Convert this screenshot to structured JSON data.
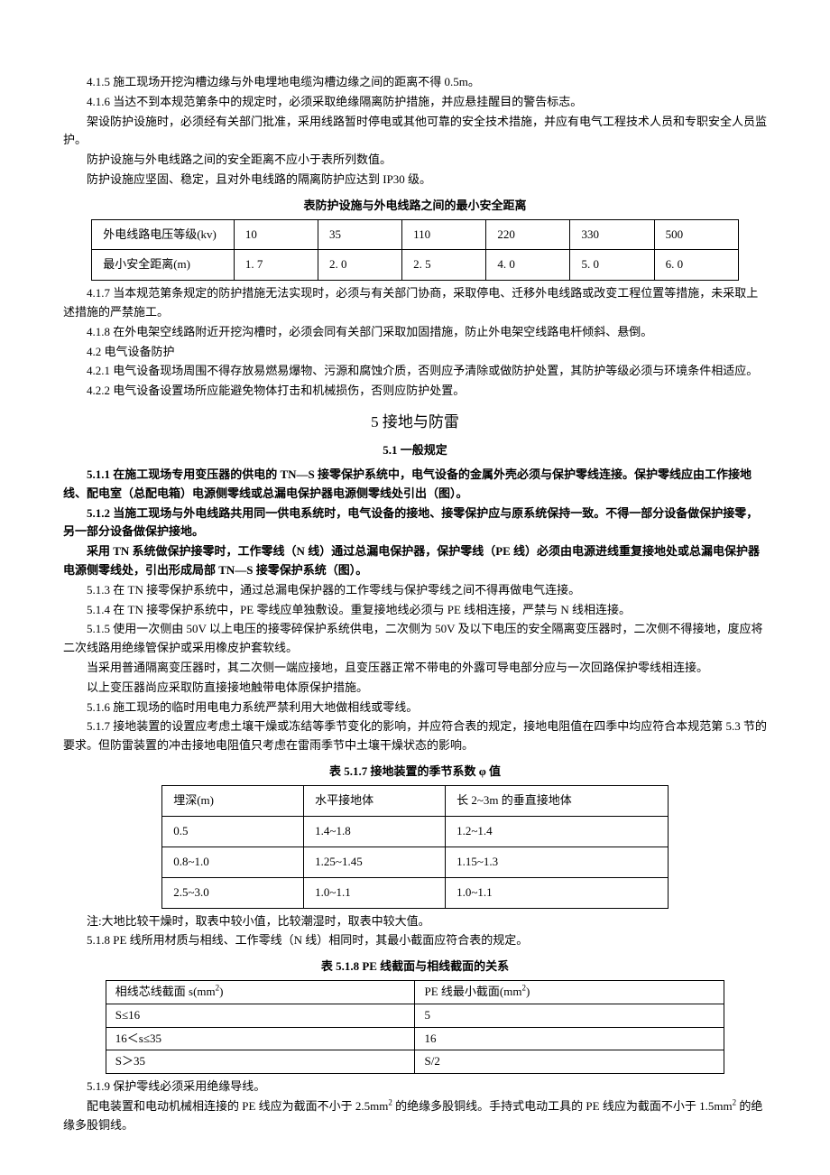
{
  "p1": "4.1.5  施工现场开挖沟槽边缘与外电埋地电缆沟槽边缘之间的距离不得 0.5m。",
  "p2": "4.1.6  当达不到本规范第条中的规定时，必须采取绝缘隔离防护措施，并应悬挂醒目的警告标志。",
  "p3": "架设防护设施时，必须经有关部门批准，采用线路暂时停电或其他可靠的安全技术措施，并应有电气工程技术人员和专职安全人员监护。",
  "p4": "防护设施与外电线路之间的安全距离不应小于表所列数值。",
  "p5": "防护设施应坚固、稳定，且对外电线路的隔离防护应达到 IP30 级。",
  "t1_title": "表防护设施与外电线路之间的最小安全距离",
  "t1": {
    "r1": [
      "外电线路电压等级(kv)",
      "10",
      "35",
      "110",
      "220",
      "330",
      "500"
    ],
    "r2": [
      "最小安全距离(m)",
      "1.  7",
      "2.  0",
      "2.  5",
      "4.  0",
      "5.  0",
      "6.  0"
    ]
  },
  "p6": "4.1.7  当本规范第条规定的防护措施无法实现时，必须与有关部门协商，采取停电、迁移外电线路或改变工程位置等措施，未采取上述措施的严禁施工。",
  "p7": "4.1.8  在外电架空线路附近开挖沟槽时，必须会同有关部门采取加固措施，防止外电架空线路电杆倾斜、悬倒。",
  "p8": "4.2  电气设备防护",
  "p9": "4.2.1  电气设备现场周围不得存放易燃易爆物、污源和腐蚀介质，否则应予清除或做防护处置，其防护等级必须与环境条件相适应。",
  "p10": "4.2.2  电气设备设置场所应能避免物体打击和机械损伤，否则应防护处置。",
  "sec5": "5  接地与防雷",
  "sec51": "5.1 一般规定",
  "p11": "5.1.1  在施工现场专用变压器的供电的 TN—S 接零保护系统中，电气设备的金属外壳必须与保护零线连接。保护零线应由工作接地线、配电室（总配电箱）电源侧零线或总漏电保护器电源侧零线处引出（图）。",
  "p12": "5.1.2  当施工现场与外电线路共用同一供电系统时，电气设备的接地、接零保护应与原系统保持一致。不得一部分设备做保护接零，另一部分设备做保护接地。",
  "p13": "采用 TN 系统做保护接零时，工作零线（N 线）通过总漏电保护器，保护零线（PE 线）必须由电源进线重复接地处或总漏电保护器电源侧零线处，引出形成局部 TN—S 接零保护系统（图）。",
  "p14": "5.1.3  在 TN 接零保护系统中，通过总漏电保护器的工作零线与保护零线之间不得再做电气连接。",
  "p15": "5.1.4  在 TN 接零保护系统中，PE 零线应单独敷设。重复接地线必须与 PE 线相连接，严禁与 N 线相连接。",
  "p16": "5.1.5  使用一次侧由 50V 以上电压的接零碎保护系统供电，二次侧为 50V 及以下电压的安全隔离变压器时，二次侧不得接地，度应将二次线路用绝缘管保护或采用橡皮护套软线。",
  "p17": "当采用普通隔离变压器时，其二次侧一端应接地，且变压器正常不带电的外露可导电部分应与一次回路保护零线相连接。",
  "p18": "以上变压器尚应采取防直接接地触带电体原保护措施。",
  "p19": "5.1.6  施工现场的临时用电电力系统严禁利用大地做相线或零线。",
  "p20": "5.1.7  接地装置的设置应考虑土壤干燥或冻结等季节变化的影响，并应符合表的规定，接地电阻值在四季中均应符合本规范第 5.3 节的要求。但防雷装置的冲击接地电阻值只考虑在雷雨季节中土壤干燥状态的影响。",
  "t2_title": "表 5.1.7   接地装置的季节系数 φ 值",
  "t2": {
    "h": [
      "埋深(m)",
      "水平接地体",
      "长 2~3m 的垂直接地体"
    ],
    "r1": [
      "0.5",
      "1.4~1.8",
      "1.2~1.4"
    ],
    "r2": [
      "0.8~1.0",
      "1.25~1.45",
      "1.15~1.3"
    ],
    "r3": [
      "2.5~3.0",
      "1.0~1.1",
      "1.0~1.1"
    ]
  },
  "p21": "注:大地比较干燥时，取表中较小值，比较潮湿时，取表中较大值。",
  "p22": "5.1.8  PE 线所用材质与相线、工作零线（N 线）相同时，其最小截面应符合表的规定。",
  "t3_title": "表 5.1.8   PE 线截面与相线截面的关系",
  "t3": {
    "h1a": "相线芯线截面 s(mm",
    "h1b": ")",
    "h2a": "PE 线最小截面(mm",
    "h2b": ")",
    "r1": [
      "S≤16",
      "5"
    ],
    "r2": [
      "16＜s≤35",
      "16"
    ],
    "r3": [
      "S＞35",
      "S/2"
    ]
  },
  "p23": "5.1.9  保护零线必须采用绝缘导线。",
  "p24a": "配电装置和电动机械相连接的 PE 线应为截面不小于 2.5mm",
  "p24b": " 的绝缘多股铜线。手持式电动工具的 PE 线应为截面不小于 1.5mm",
  "p24c": " 的绝缘多股铜线。"
}
